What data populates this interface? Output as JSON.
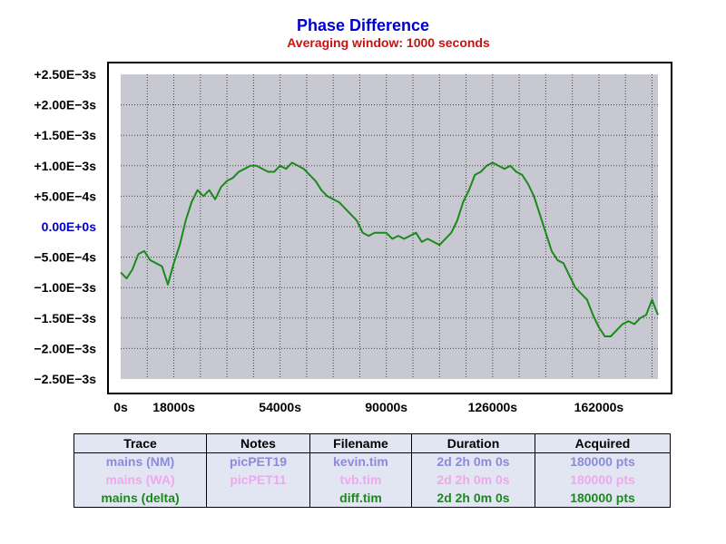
{
  "chart_data": {
    "type": "line",
    "title": "Phase Difference",
    "subtitle": "Averaging window: 1000 seconds",
    "xlabel": "",
    "ylabel": "",
    "xlim": [
      0,
      182000
    ],
    "ylim": [
      -0.0025,
      0.0025
    ],
    "grid": true,
    "x_ticks": [
      {
        "value": 0,
        "label": "0s"
      },
      {
        "value": 18000,
        "label": "18000s"
      },
      {
        "value": 54000,
        "label": "54000s"
      },
      {
        "value": 90000,
        "label": "90000s"
      },
      {
        "value": 126000,
        "label": "126000s"
      },
      {
        "value": 162000,
        "label": "162000s"
      }
    ],
    "y_ticks": [
      {
        "value": 0.0025,
        "label": "+2.50E−3s"
      },
      {
        "value": 0.002,
        "label": "+2.00E−3s"
      },
      {
        "value": 0.0015,
        "label": "+1.50E−3s"
      },
      {
        "value": 0.001,
        "label": "+1.00E−3s"
      },
      {
        "value": 0.0005,
        "label": "+5.00E−4s"
      },
      {
        "value": 0,
        "label": "0.00E+0s",
        "highlight": true
      },
      {
        "value": -0.0005,
        "label": "−5.00E−4s"
      },
      {
        "value": -0.001,
        "label": "−1.00E−3s"
      },
      {
        "value": -0.0015,
        "label": "−1.50E−3s"
      },
      {
        "value": -0.002,
        "label": "−2.00E−3s"
      },
      {
        "value": -0.0025,
        "label": "−2.50E−3s"
      }
    ],
    "series": [
      {
        "name": "mains (delta)",
        "color": "#1a8a1a",
        "x": [
          0,
          2000,
          4000,
          6000,
          8000,
          10000,
          12000,
          14000,
          16000,
          18000,
          20000,
          22000,
          24000,
          26000,
          28000,
          30000,
          32000,
          34000,
          36000,
          38000,
          40000,
          42000,
          44000,
          46000,
          48000,
          50000,
          52000,
          54000,
          56000,
          58000,
          60000,
          62000,
          64000,
          66000,
          68000,
          70000,
          72000,
          74000,
          76000,
          78000,
          80000,
          82000,
          84000,
          86000,
          88000,
          90000,
          92000,
          94000,
          96000,
          98000,
          100000,
          102000,
          104000,
          106000,
          108000,
          110000,
          112000,
          114000,
          116000,
          118000,
          120000,
          122000,
          124000,
          126000,
          128000,
          130000,
          132000,
          134000,
          136000,
          138000,
          140000,
          142000,
          144000,
          146000,
          148000,
          150000,
          152000,
          154000,
          156000,
          158000,
          160000,
          162000,
          164000,
          166000,
          168000,
          170000,
          172000,
          174000,
          176000,
          178000,
          180000,
          182000
        ],
        "y": [
          -0.00075,
          -0.00085,
          -0.0007,
          -0.00045,
          -0.0004,
          -0.00055,
          -0.0006,
          -0.00065,
          -0.00095,
          -0.0006,
          -0.0003,
          0.0001,
          0.0004,
          0.0006,
          0.0005,
          0.0006,
          0.00045,
          0.00065,
          0.00075,
          0.0008,
          0.0009,
          0.00095,
          0.001,
          0.001,
          0.00095,
          0.0009,
          0.0009,
          0.001,
          0.00095,
          0.00105,
          0.001,
          0.00095,
          0.00085,
          0.00075,
          0.0006,
          0.0005,
          0.00045,
          0.0004,
          0.0003,
          0.0002,
          0.0001,
          -0.0001,
          -0.00015,
          -0.0001,
          -0.0001,
          -0.0001,
          -0.0002,
          -0.00015,
          -0.0002,
          -0.00015,
          -0.0001,
          -0.00025,
          -0.0002,
          -0.00025,
          -0.0003,
          -0.0002,
          -0.0001,
          0.0001,
          0.0004,
          0.0006,
          0.00085,
          0.0009,
          0.001,
          0.00105,
          0.001,
          0.00095,
          0.001,
          0.0009,
          0.00085,
          0.0007,
          0.0005,
          0.0002,
          -0.0001,
          -0.0004,
          -0.00055,
          -0.0006,
          -0.0008,
          -0.001,
          -0.0011,
          -0.0012,
          -0.00145,
          -0.00165,
          -0.0018,
          -0.0018,
          -0.0017,
          -0.0016,
          -0.00155,
          -0.0016,
          -0.0015,
          -0.00145,
          -0.0012,
          -0.00145
        ]
      }
    ]
  },
  "legend_table": {
    "headers": [
      "Trace",
      "Notes",
      "Filename",
      "Duration",
      "Acquired"
    ],
    "rows": [
      {
        "color": "#8a8ae0",
        "cells": [
          "mains (NM)",
          "picPET19",
          "kevin.tim",
          "2d 2h 0m 0s",
          "180000 pts"
        ]
      },
      {
        "color": "#f2a6ee",
        "cells": [
          "mains (WA)",
          "picPET11",
          "tvb.tim",
          "2d 2h 0m 0s",
          "180000 pts"
        ]
      },
      {
        "color": "#1a8a1a",
        "cells": [
          "mains (delta)",
          "",
          "diff.tim",
          "2d 2h 0m 0s",
          "180000 pts"
        ]
      }
    ]
  },
  "colors": {
    "title": "#0000cc",
    "subtitle": "#cc1111",
    "zero_label": "#0000cc",
    "plot_bg": "#c8c8d2",
    "frame_bg": "#ffffff"
  }
}
